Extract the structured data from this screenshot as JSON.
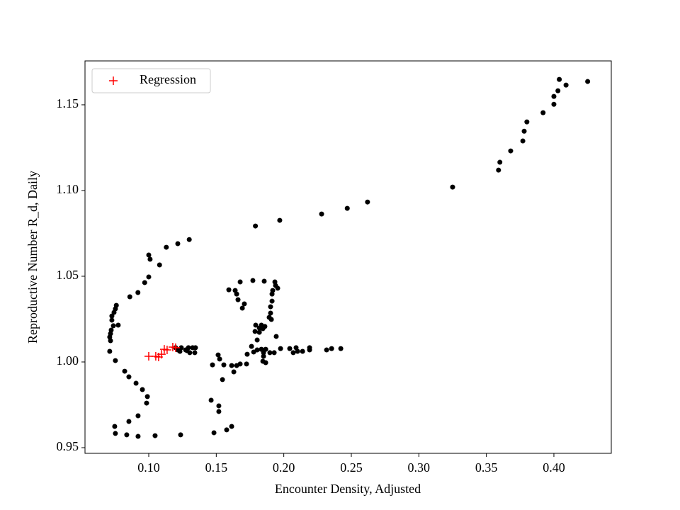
{
  "chart_data": {
    "type": "scatter",
    "xlabel": "Encounter Density, Adjusted",
    "ylabel": "Reproductive Number R_d, Daily",
    "xlim": [
      0.0528,
      0.4425
    ],
    "ylim": [
      0.9467,
      1.1756
    ],
    "xticks": [
      {
        "value": 0.1,
        "label": "0.10"
      },
      0.15,
      {
        "value": 0.2,
        "label": "0.20"
      },
      0.25,
      {
        "value": 0.3,
        "label": "0.30"
      },
      0.35,
      {
        "value": 0.4,
        "label": "0.40"
      }
    ],
    "yticks": [
      0.95,
      {
        "value": 1.0,
        "label": "1.00"
      },
      1.05,
      {
        "value": 1.1,
        "label": "1.10"
      },
      1.15
    ],
    "legend": "upper left",
    "series": [
      {
        "color": "#000000",
        "marker": "o",
        "x": [
          0.425,
          0.404,
          0.409,
          0.403,
          0.4,
          0.4,
          0.392,
          0.38,
          0.378,
          0.377,
          0.368,
          0.36,
          0.359,
          0.325,
          0.262,
          0.247,
          0.228,
          0.197,
          0.179,
          0.13,
          0.1215,
          0.113,
          0.108,
          0.1,
          0.101,
          0.1,
          0.097,
          0.092,
          0.086,
          0.076,
          0.0753,
          0.0743,
          0.0727,
          0.0727,
          0.0774,
          0.0738,
          0.0722,
          0.0717,
          0.0711,
          0.0717,
          0.0711,
          0.0753,
          0.0822,
          0.0853,
          0.0906,
          0.0953,
          0.099,
          0.0984,
          0.0921,
          0.0853,
          0.0748,
          0.0753,
          0.0837,
          0.0921,
          0.1047,
          0.1236,
          0.1483,
          0.1577,
          0.1614,
          0.1519,
          0.1519,
          0.1462,
          0.1546,
          0.1472,
          0.1514,
          0.1525,
          0.1556,
          0.1614,
          0.1651,
          0.1677,
          0.163,
          0.1724,
          0.1729,
          0.1761,
          0.1777,
          0.1803,
          0.1834,
          0.185,
          0.1866,
          0.1803,
          0.1819,
          0.1819,
          0.1834,
          0.185,
          0.1845,
          0.1866,
          0.1897,
          0.1929,
          0.1976,
          0.2044,
          0.207,
          0.2091,
          0.2102,
          0.2139,
          0.2191,
          0.2191,
          0.2317,
          0.2354,
          0.2422,
          0.1902,
          0.1902,
          0.1892,
          0.1908,
          0.1913,
          0.1913,
          0.1918,
          0.1939,
          0.1955,
          0.1934,
          0.1855,
          0.1771,
          0.1677,
          0.164,
          0.1651,
          0.1661,
          0.1708,
          0.1693,
          0.1593,
          0.186,
          0.1845,
          0.1792,
          0.1787,
          0.1944,
          0.1199,
          0.1215,
          0.1241,
          0.1273,
          0.1294,
          0.1325,
          0.1346,
          0.1304,
          0.1341,
          0.1283,
          0.1231
        ],
        "values": [
          1.1636,
          1.1648,
          1.1615,
          1.1582,
          1.1549,
          1.1503,
          1.1454,
          1.14,
          1.1346,
          1.1289,
          1.1231,
          1.1165,
          1.1119,
          1.102,
          1.0933,
          1.0896,
          1.0863,
          1.0826,
          1.0793,
          1.0714,
          1.069,
          1.0669,
          1.0566,
          1.0624,
          1.0599,
          1.0496,
          1.0463,
          1.0405,
          1.038,
          1.033,
          1.031,
          1.0289,
          1.0268,
          1.0244,
          1.0215,
          1.0211,
          1.0186,
          1.0165,
          1.0145,
          1.0124,
          1.0062,
          1.0008,
          0.9946,
          0.9913,
          0.9876,
          0.9839,
          0.9798,
          0.976,
          0.9686,
          0.9653,
          0.9624,
          0.9583,
          0.9575,
          0.9566,
          0.957,
          0.9575,
          0.9587,
          0.9604,
          0.9624,
          0.9744,
          0.9711,
          0.9777,
          0.9897,
          0.9983,
          1.0041,
          1.0017,
          0.9983,
          0.9979,
          0.9979,
          0.9988,
          0.9942,
          0.9988,
          1.0045,
          1.0091,
          1.0058,
          1.007,
          1.0074,
          1.0033,
          1.0074,
          1.0128,
          1.0173,
          1.0198,
          1.0215,
          1.0054,
          1.0004,
          0.9996,
          1.0054,
          1.0054,
          1.0078,
          1.0078,
          1.0054,
          1.0083,
          1.0062,
          1.0062,
          1.0083,
          1.007,
          1.007,
          1.0078,
          1.0078,
          1.0322,
          1.0285,
          1.026,
          1.0248,
          1.0355,
          1.0396,
          1.0417,
          1.0446,
          1.043,
          1.0467,
          1.0471,
          1.0475,
          1.0467,
          1.0417,
          1.0396,
          1.0363,
          1.0339,
          1.0314,
          1.0421,
          1.0207,
          1.0194,
          1.0215,
          1.0178,
          1.0149,
          1.0083,
          1.007,
          1.0083,
          1.007,
          1.0083,
          1.0083,
          1.0083,
          1.0054,
          1.0054,
          1.0066,
          1.0062
        ]
      },
      {
        "name": "Regression",
        "color": "#ff0000",
        "marker": "+",
        "x": [
          0.1,
          0.1052,
          0.1073,
          0.1094,
          0.1115,
          0.1136,
          0.1178,
          0.1199
        ],
        "values": [
          1.0033,
          1.0033,
          1.0029,
          1.0045,
          1.0074,
          1.007,
          1.0087,
          1.0083
        ]
      }
    ]
  }
}
